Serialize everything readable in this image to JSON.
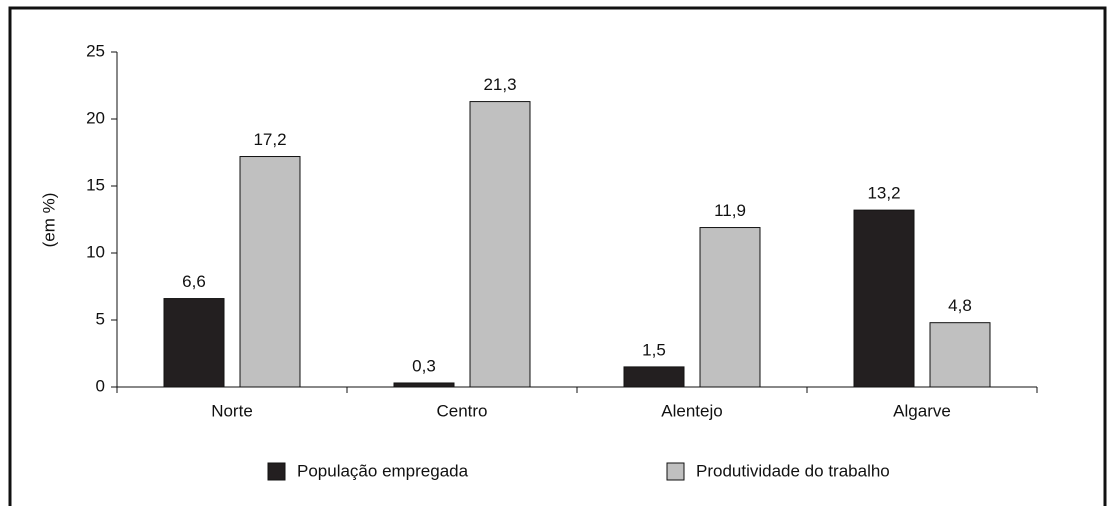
{
  "chart_data": {
    "type": "bar",
    "y_label": "(em %)",
    "categories": [
      "Norte",
      "Centro",
      "Alentejo",
      "Algarve"
    ],
    "series": [
      {
        "name": "População empregada",
        "color": "#231f20",
        "values": [
          6.6,
          0.3,
          1.5,
          13.2
        ],
        "value_labels": [
          "6,6",
          "0,3",
          "1,5",
          "13,2"
        ]
      },
      {
        "name": "Produtividade do trabalho",
        "color": "#c0c0c0",
        "values": [
          17.2,
          21.3,
          11.9,
          4.8
        ],
        "value_labels": [
          "17,2",
          "21,3",
          "11,9",
          "4,8"
        ]
      }
    ],
    "ylim": [
      0,
      25
    ],
    "yticks": [
      0,
      5,
      10,
      15,
      20,
      25
    ],
    "legend": "bottom"
  }
}
